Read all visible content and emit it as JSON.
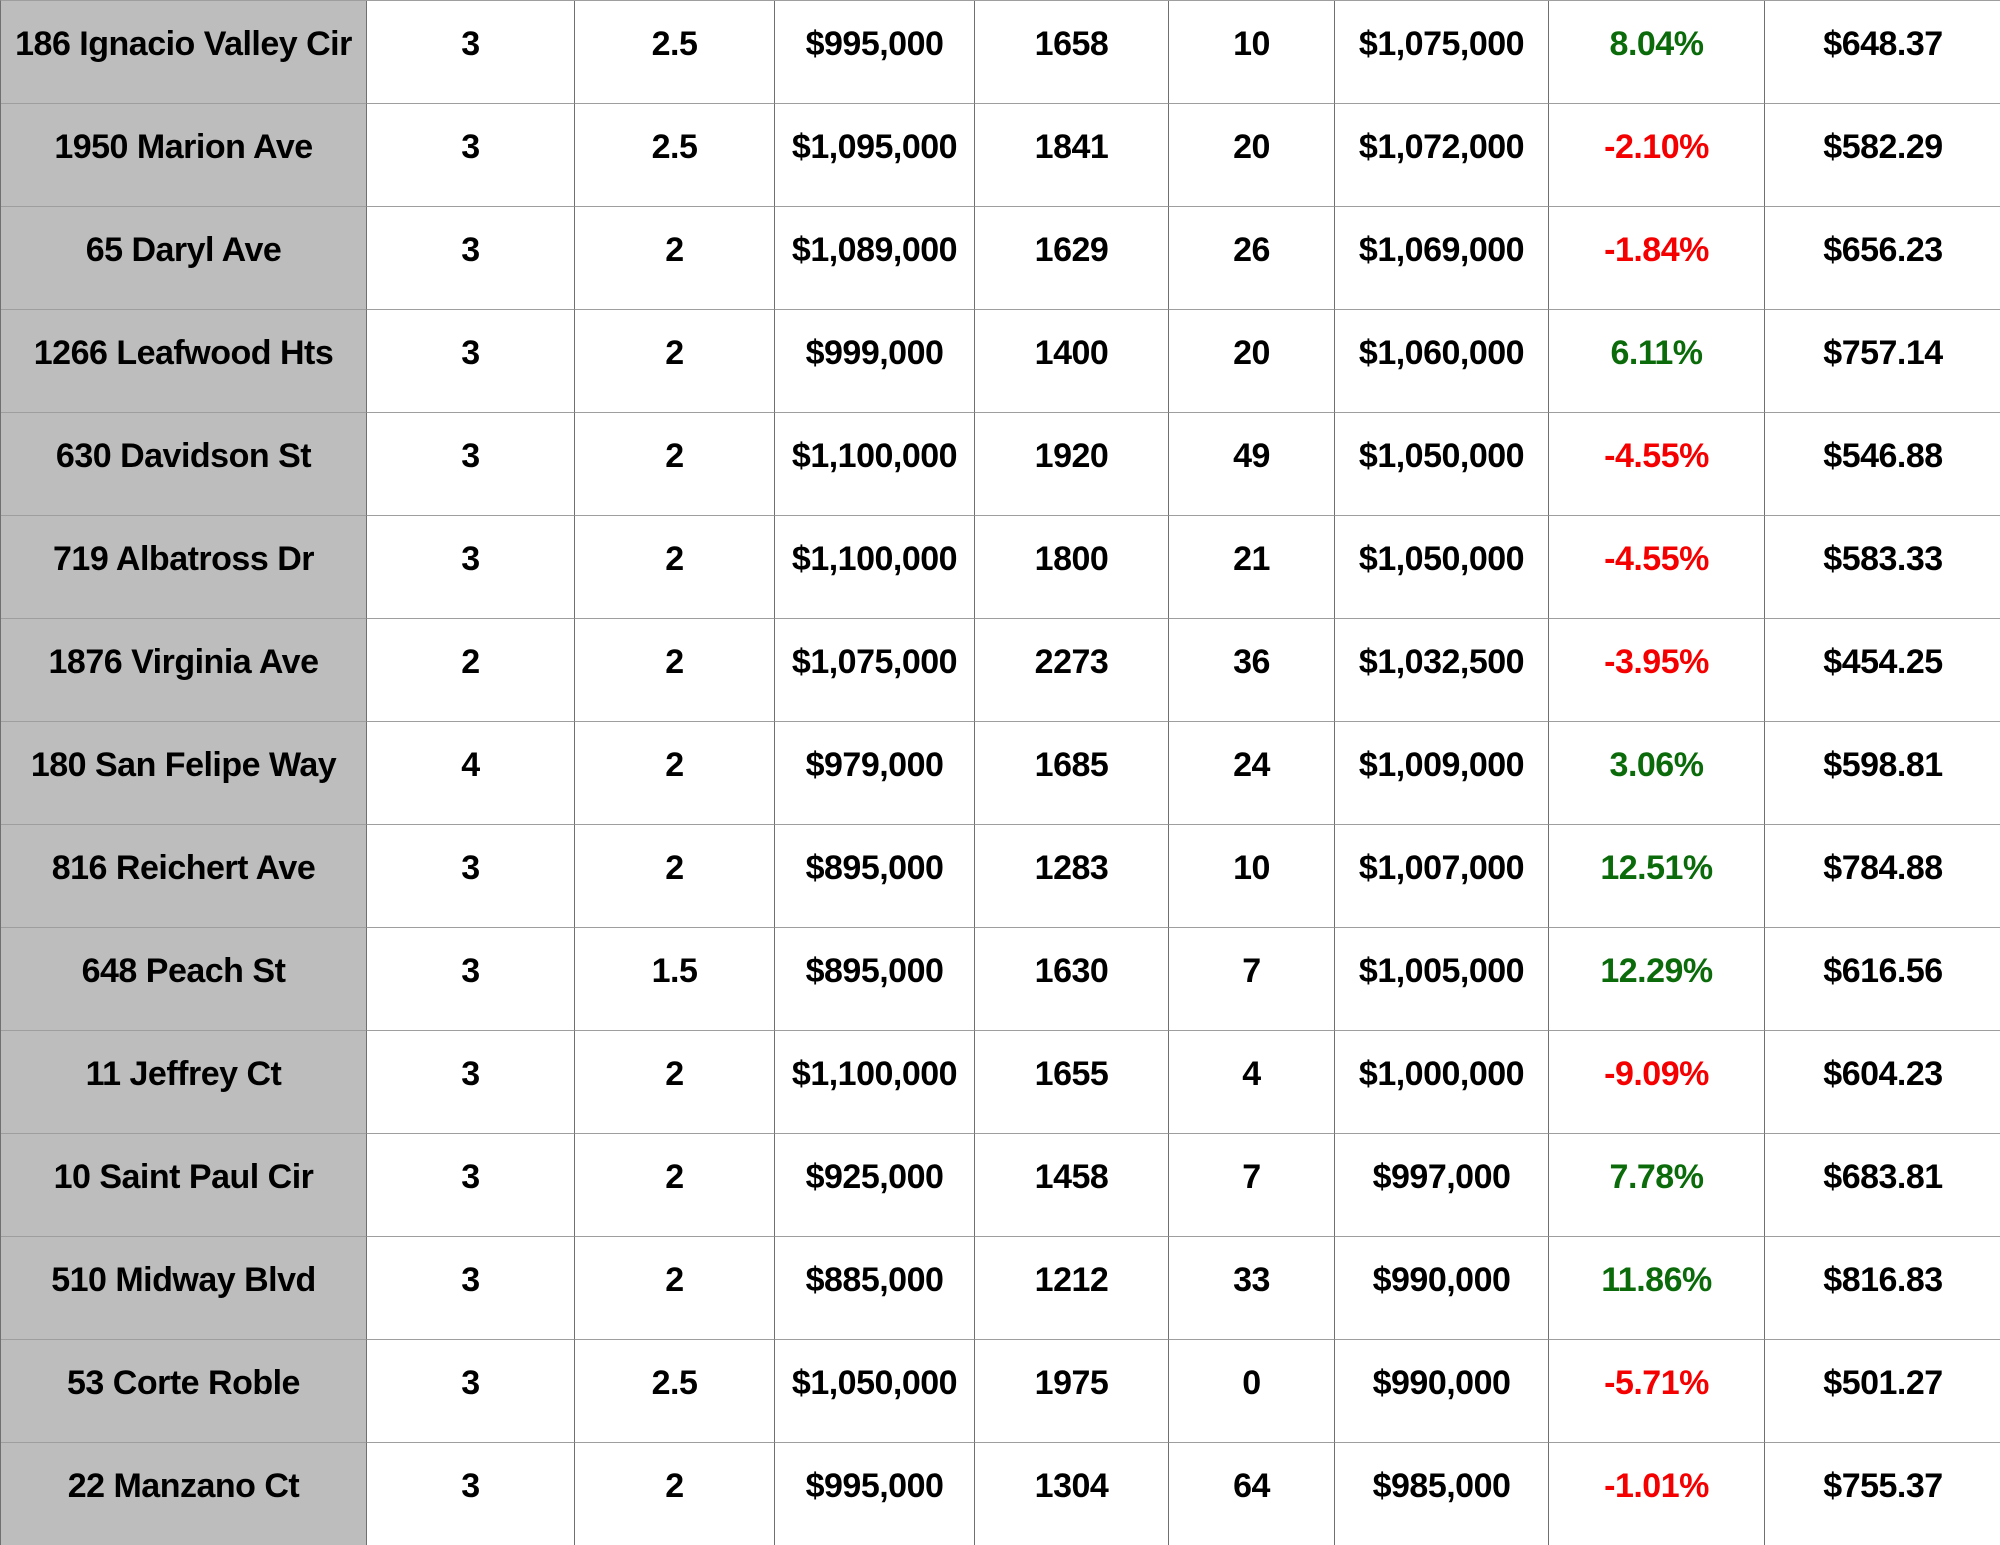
{
  "colors": {
    "address_cell_bg": "#bdbdbd",
    "row_bg": "#ffffff",
    "text": "#000000",
    "positive_pct": "#0b6b0b",
    "negative_pct": "#f40000",
    "grid_vertical": "#707070",
    "grid_horizontal": "#9e9e9e"
  },
  "chart_data": {
    "type": "table",
    "has_header_row": false,
    "fields": [
      "address",
      "beds",
      "baths",
      "list_price",
      "sqft",
      "days",
      "sold_price",
      "pct_change",
      "price_per_sqft"
    ],
    "rows": [
      {
        "address": "186 Ignacio Valley Cir",
        "beds": "3",
        "baths": "2.5",
        "list_price": "$995,000",
        "sqft": "1658",
        "days": "10",
        "sold_price": "$1,075,000",
        "pct_change": "8.04%",
        "price_per_sqft": "$648.37"
      },
      {
        "address": "1950 Marion Ave",
        "beds": "3",
        "baths": "2.5",
        "list_price": "$1,095,000",
        "sqft": "1841",
        "days": "20",
        "sold_price": "$1,072,000",
        "pct_change": "-2.10%",
        "price_per_sqft": "$582.29"
      },
      {
        "address": "65 Daryl Ave",
        "beds": "3",
        "baths": "2",
        "list_price": "$1,089,000",
        "sqft": "1629",
        "days": "26",
        "sold_price": "$1,069,000",
        "pct_change": "-1.84%",
        "price_per_sqft": "$656.23"
      },
      {
        "address": "1266 Leafwood Hts",
        "beds": "3",
        "baths": "2",
        "list_price": "$999,000",
        "sqft": "1400",
        "days": "20",
        "sold_price": "$1,060,000",
        "pct_change": "6.11%",
        "price_per_sqft": "$757.14"
      },
      {
        "address": "630 Davidson St",
        "beds": "3",
        "baths": "2",
        "list_price": "$1,100,000",
        "sqft": "1920",
        "days": "49",
        "sold_price": "$1,050,000",
        "pct_change": "-4.55%",
        "price_per_sqft": "$546.88"
      },
      {
        "address": "719 Albatross Dr",
        "beds": "3",
        "baths": "2",
        "list_price": "$1,100,000",
        "sqft": "1800",
        "days": "21",
        "sold_price": "$1,050,000",
        "pct_change": "-4.55%",
        "price_per_sqft": "$583.33"
      },
      {
        "address": "1876 Virginia Ave",
        "beds": "2",
        "baths": "2",
        "list_price": "$1,075,000",
        "sqft": "2273",
        "days": "36",
        "sold_price": "$1,032,500",
        "pct_change": "-3.95%",
        "price_per_sqft": "$454.25"
      },
      {
        "address": "180 San Felipe Way",
        "beds": "4",
        "baths": "2",
        "list_price": "$979,000",
        "sqft": "1685",
        "days": "24",
        "sold_price": "$1,009,000",
        "pct_change": "3.06%",
        "price_per_sqft": "$598.81"
      },
      {
        "address": "816 Reichert Ave",
        "beds": "3",
        "baths": "2",
        "list_price": "$895,000",
        "sqft": "1283",
        "days": "10",
        "sold_price": "$1,007,000",
        "pct_change": "12.51%",
        "price_per_sqft": "$784.88"
      },
      {
        "address": "648 Peach St",
        "beds": "3",
        "baths": "1.5",
        "list_price": "$895,000",
        "sqft": "1630",
        "days": "7",
        "sold_price": "$1,005,000",
        "pct_change": "12.29%",
        "price_per_sqft": "$616.56"
      },
      {
        "address": "11 Jeffrey Ct",
        "beds": "3",
        "baths": "2",
        "list_price": "$1,100,000",
        "sqft": "1655",
        "days": "4",
        "sold_price": "$1,000,000",
        "pct_change": "-9.09%",
        "price_per_sqft": "$604.23"
      },
      {
        "address": "10 Saint Paul Cir",
        "beds": "3",
        "baths": "2",
        "list_price": "$925,000",
        "sqft": "1458",
        "days": "7",
        "sold_price": "$997,000",
        "pct_change": "7.78%",
        "price_per_sqft": "$683.81"
      },
      {
        "address": "510 Midway Blvd",
        "beds": "3",
        "baths": "2",
        "list_price": "$885,000",
        "sqft": "1212",
        "days": "33",
        "sold_price": "$990,000",
        "pct_change": "11.86%",
        "price_per_sqft": "$816.83"
      },
      {
        "address": "53 Corte Roble",
        "beds": "3",
        "baths": "2.5",
        "list_price": "$1,050,000",
        "sqft": "1975",
        "days": "0",
        "sold_price": "$990,000",
        "pct_change": "-5.71%",
        "price_per_sqft": "$501.27"
      },
      {
        "address": "22 Manzano Ct",
        "beds": "3",
        "baths": "2",
        "list_price": "$995,000",
        "sqft": "1304",
        "days": "64",
        "sold_price": "$985,000",
        "pct_change": "-1.01%",
        "price_per_sqft": "$755.37"
      }
    ]
  }
}
